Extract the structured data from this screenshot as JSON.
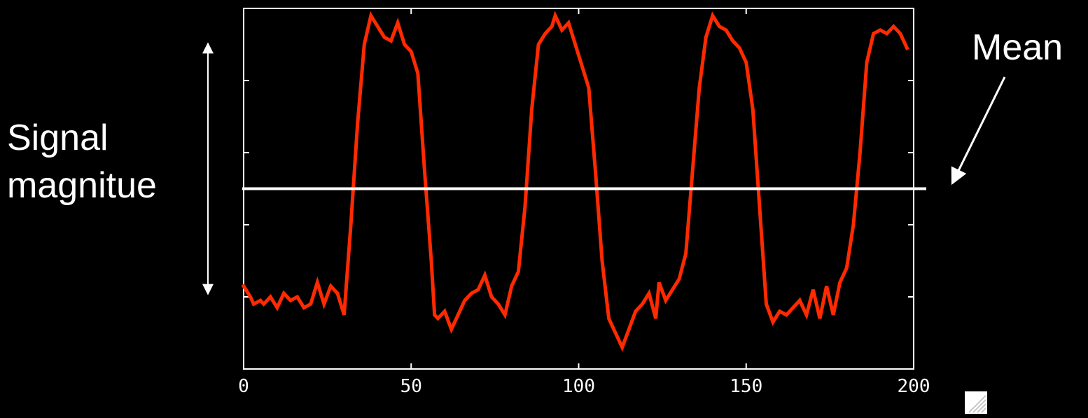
{
  "annotations": {
    "ylabel_line1": "Signal",
    "ylabel_line2": "magnitue",
    "mean_label": "Mean"
  },
  "colors": {
    "background": "#000000",
    "axes": "#ffffff",
    "signal": "#ff2a00",
    "mean_line": "#ffffff"
  },
  "chart_data": {
    "type": "line",
    "title": "",
    "xlabel": "",
    "ylabel": "",
    "xlim": [
      0,
      200
    ],
    "ylim": [
      0,
      1
    ],
    "xticks": [
      0,
      50,
      100,
      150,
      200
    ],
    "xtick_labels": [
      "0",
      "50",
      "100",
      "150",
      "200"
    ],
    "yticks": [
      0.2,
      0.4,
      0.6,
      0.8
    ],
    "ytick_labels": [
      "",
      "",
      "",
      ""
    ],
    "grid": false,
    "legend": "none",
    "mean": 0.5,
    "series": [
      {
        "values": [
          [
            0,
            0.23
          ],
          [
            2,
            0.2
          ],
          [
            3,
            0.18
          ],
          [
            5,
            0.19
          ],
          [
            6,
            0.18
          ],
          [
            8,
            0.2
          ],
          [
            10,
            0.17
          ],
          [
            12,
            0.21
          ],
          [
            14,
            0.19
          ],
          [
            16,
            0.2
          ],
          [
            18,
            0.17
          ],
          [
            20,
            0.18
          ],
          [
            22,
            0.24
          ],
          [
            24,
            0.18
          ],
          [
            26,
            0.23
          ],
          [
            28,
            0.21
          ],
          [
            30,
            0.15
          ],
          [
            32,
            0.4
          ],
          [
            34,
            0.68
          ],
          [
            36,
            0.9
          ],
          [
            38,
            0.98
          ],
          [
            40,
            0.95
          ],
          [
            42,
            0.92
          ],
          [
            44,
            0.91
          ],
          [
            46,
            0.96
          ],
          [
            48,
            0.9
          ],
          [
            50,
            0.88
          ],
          [
            52,
            0.82
          ],
          [
            54,
            0.55
          ],
          [
            56,
            0.3
          ],
          [
            57,
            0.15
          ],
          [
            58,
            0.14
          ],
          [
            60,
            0.16
          ],
          [
            62,
            0.11
          ],
          [
            64,
            0.15
          ],
          [
            66,
            0.19
          ],
          [
            68,
            0.21
          ],
          [
            70,
            0.22
          ],
          [
            72,
            0.26
          ],
          [
            74,
            0.2
          ],
          [
            76,
            0.18
          ],
          [
            78,
            0.15
          ],
          [
            80,
            0.23
          ],
          [
            82,
            0.27
          ],
          [
            84,
            0.45
          ],
          [
            86,
            0.72
          ],
          [
            88,
            0.9
          ],
          [
            90,
            0.93
          ],
          [
            92,
            0.95
          ],
          [
            93,
            0.98
          ],
          [
            95,
            0.94
          ],
          [
            97,
            0.96
          ],
          [
            99,
            0.9
          ],
          [
            101,
            0.84
          ],
          [
            103,
            0.78
          ],
          [
            105,
            0.55
          ],
          [
            107,
            0.3
          ],
          [
            109,
            0.14
          ],
          [
            111,
            0.1
          ],
          [
            113,
            0.06
          ],
          [
            115,
            0.11
          ],
          [
            117,
            0.16
          ],
          [
            119,
            0.18
          ],
          [
            121,
            0.21
          ],
          [
            123,
            0.14
          ],
          [
            124,
            0.24
          ],
          [
            126,
            0.19
          ],
          [
            128,
            0.22
          ],
          [
            130,
            0.25
          ],
          [
            132,
            0.32
          ],
          [
            134,
            0.55
          ],
          [
            136,
            0.78
          ],
          [
            138,
            0.92
          ],
          [
            140,
            0.98
          ],
          [
            142,
            0.95
          ],
          [
            144,
            0.94
          ],
          [
            146,
            0.91
          ],
          [
            148,
            0.89
          ],
          [
            150,
            0.85
          ],
          [
            152,
            0.72
          ],
          [
            154,
            0.45
          ],
          [
            156,
            0.18
          ],
          [
            158,
            0.13
          ],
          [
            160,
            0.16
          ],
          [
            162,
            0.15
          ],
          [
            164,
            0.17
          ],
          [
            166,
            0.19
          ],
          [
            168,
            0.15
          ],
          [
            170,
            0.22
          ],
          [
            172,
            0.14
          ],
          [
            174,
            0.23
          ],
          [
            176,
            0.15
          ],
          [
            178,
            0.24
          ],
          [
            180,
            0.28
          ],
          [
            182,
            0.4
          ],
          [
            184,
            0.6
          ],
          [
            186,
            0.85
          ],
          [
            188,
            0.93
          ],
          [
            190,
            0.94
          ],
          [
            192,
            0.93
          ],
          [
            194,
            0.95
          ],
          [
            196,
            0.93
          ],
          [
            198,
            0.89
          ]
        ]
      }
    ]
  }
}
